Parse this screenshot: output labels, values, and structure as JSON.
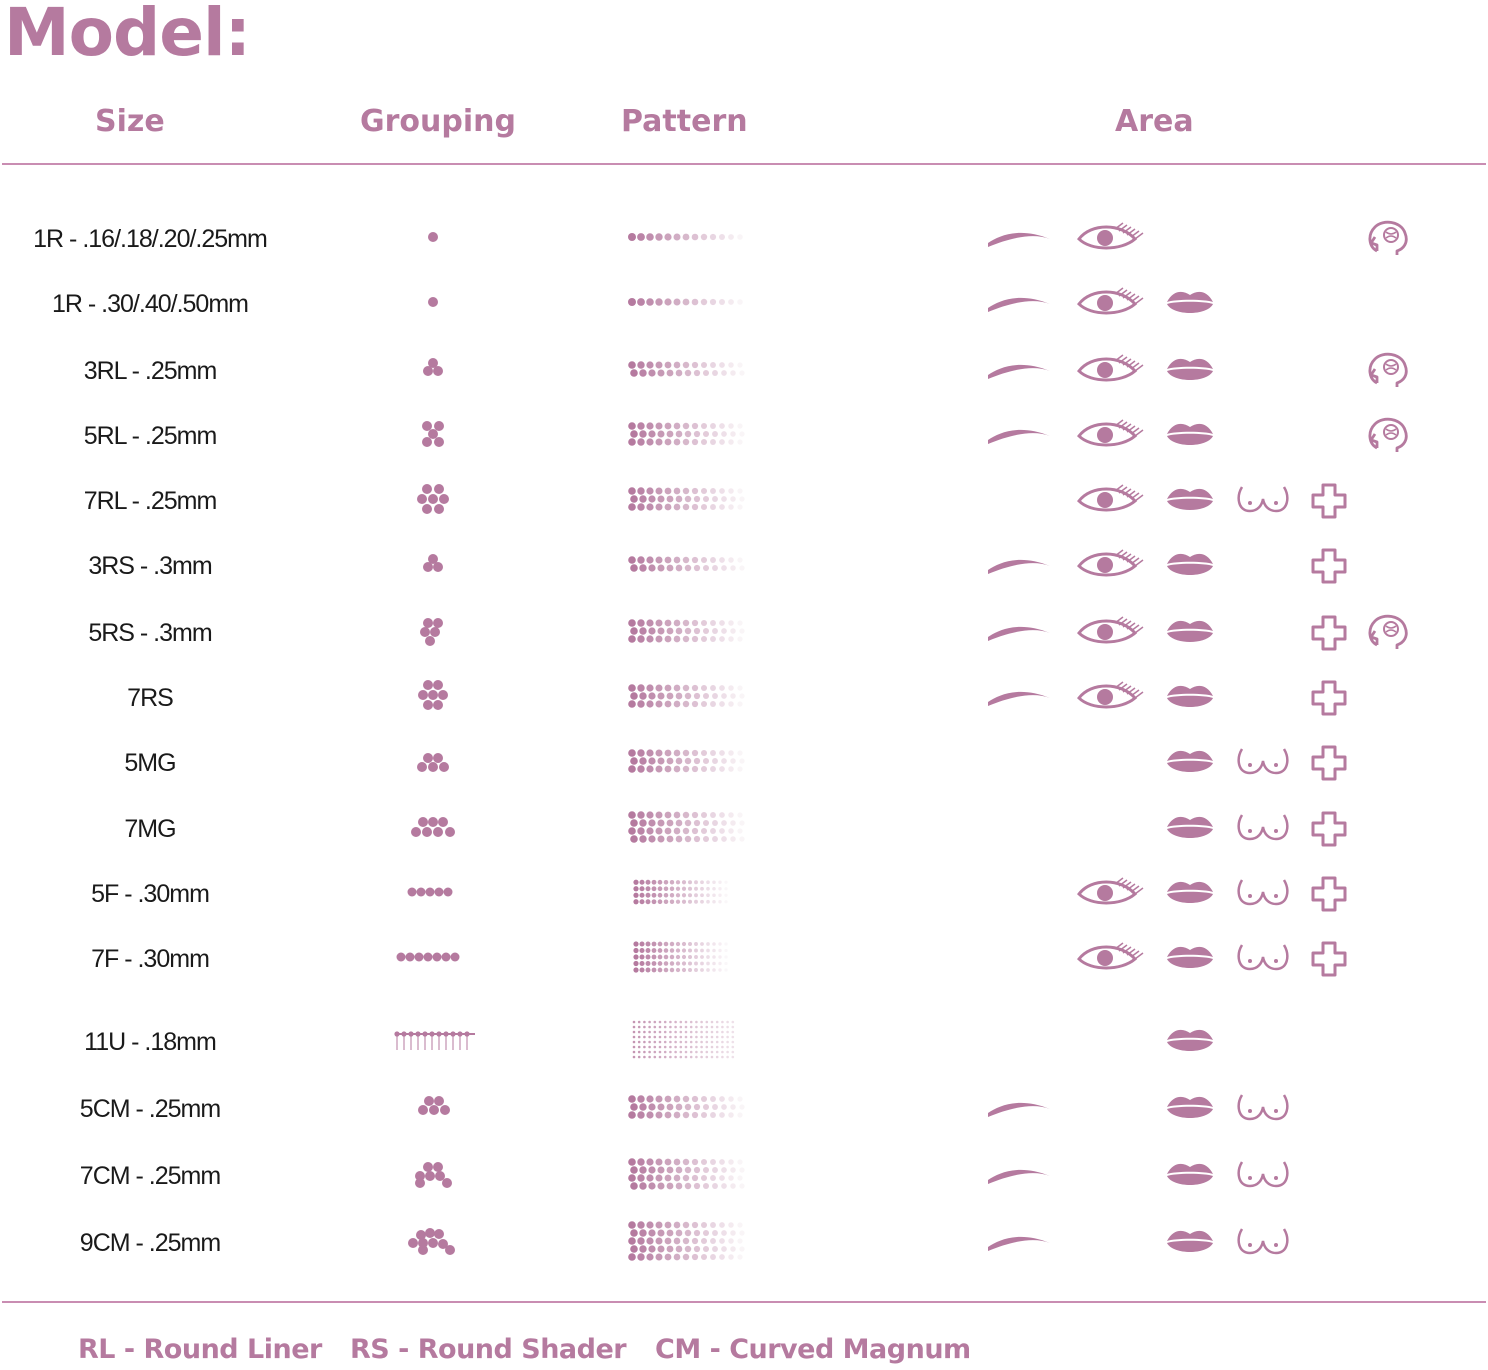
{
  "page": {
    "title": "Model:",
    "columns": {
      "size": "Size",
      "grouping": "Grouping",
      "pattern": "Pattern",
      "area": "Area"
    },
    "accent_color": "#b57a9f",
    "rows": [
      {
        "size": "1R - .16/.18/.20/.25mm",
        "areas": [
          "brow",
          "eye",
          "scalp"
        ]
      },
      {
        "size": "1R - .30/.40/.50mm",
        "areas": [
          "brow",
          "eye",
          "lip"
        ]
      },
      {
        "size": "3RL - .25mm",
        "areas": [
          "brow",
          "eye",
          "lip",
          "scalp"
        ]
      },
      {
        "size": "5RL - .25mm",
        "areas": [
          "brow",
          "eye",
          "lip",
          "scalp"
        ]
      },
      {
        "size": "7RL - .25mm",
        "areas": [
          "eye",
          "lip",
          "areola",
          "scar"
        ]
      },
      {
        "size": "3RS - .3mm",
        "areas": [
          "brow",
          "eye",
          "lip",
          "scar"
        ]
      },
      {
        "size": "5RS - .3mm",
        "areas": [
          "brow",
          "eye",
          "lip",
          "scar",
          "scalp"
        ]
      },
      {
        "size": "7RS",
        "areas": [
          "brow",
          "eye",
          "lip",
          "scar"
        ]
      },
      {
        "size": "5MG",
        "areas": [
          "lip",
          "areola",
          "scar"
        ]
      },
      {
        "size": "7MG",
        "areas": [
          "lip",
          "areola",
          "scar"
        ]
      },
      {
        "size": "5F - .30mm",
        "areas": [
          "eye",
          "lip",
          "areola",
          "scar"
        ]
      },
      {
        "size": "7F - .30mm",
        "areas": [
          "eye",
          "lip",
          "areola",
          "scar"
        ]
      },
      {
        "size": "11U - .18mm",
        "areas": [
          "lip"
        ]
      },
      {
        "size": "5CM - .25mm",
        "areas": [
          "brow",
          "lip",
          "areola"
        ]
      },
      {
        "size": "7CM - .25mm",
        "areas": [
          "brow",
          "lip",
          "areola"
        ]
      },
      {
        "size": "9CM - .25mm",
        "areas": [
          "brow",
          "lip",
          "areola"
        ]
      }
    ],
    "legend": [
      "RL - Round Liner",
      "RS - Round Shader",
      "CM - Curved Magnum"
    ]
  }
}
